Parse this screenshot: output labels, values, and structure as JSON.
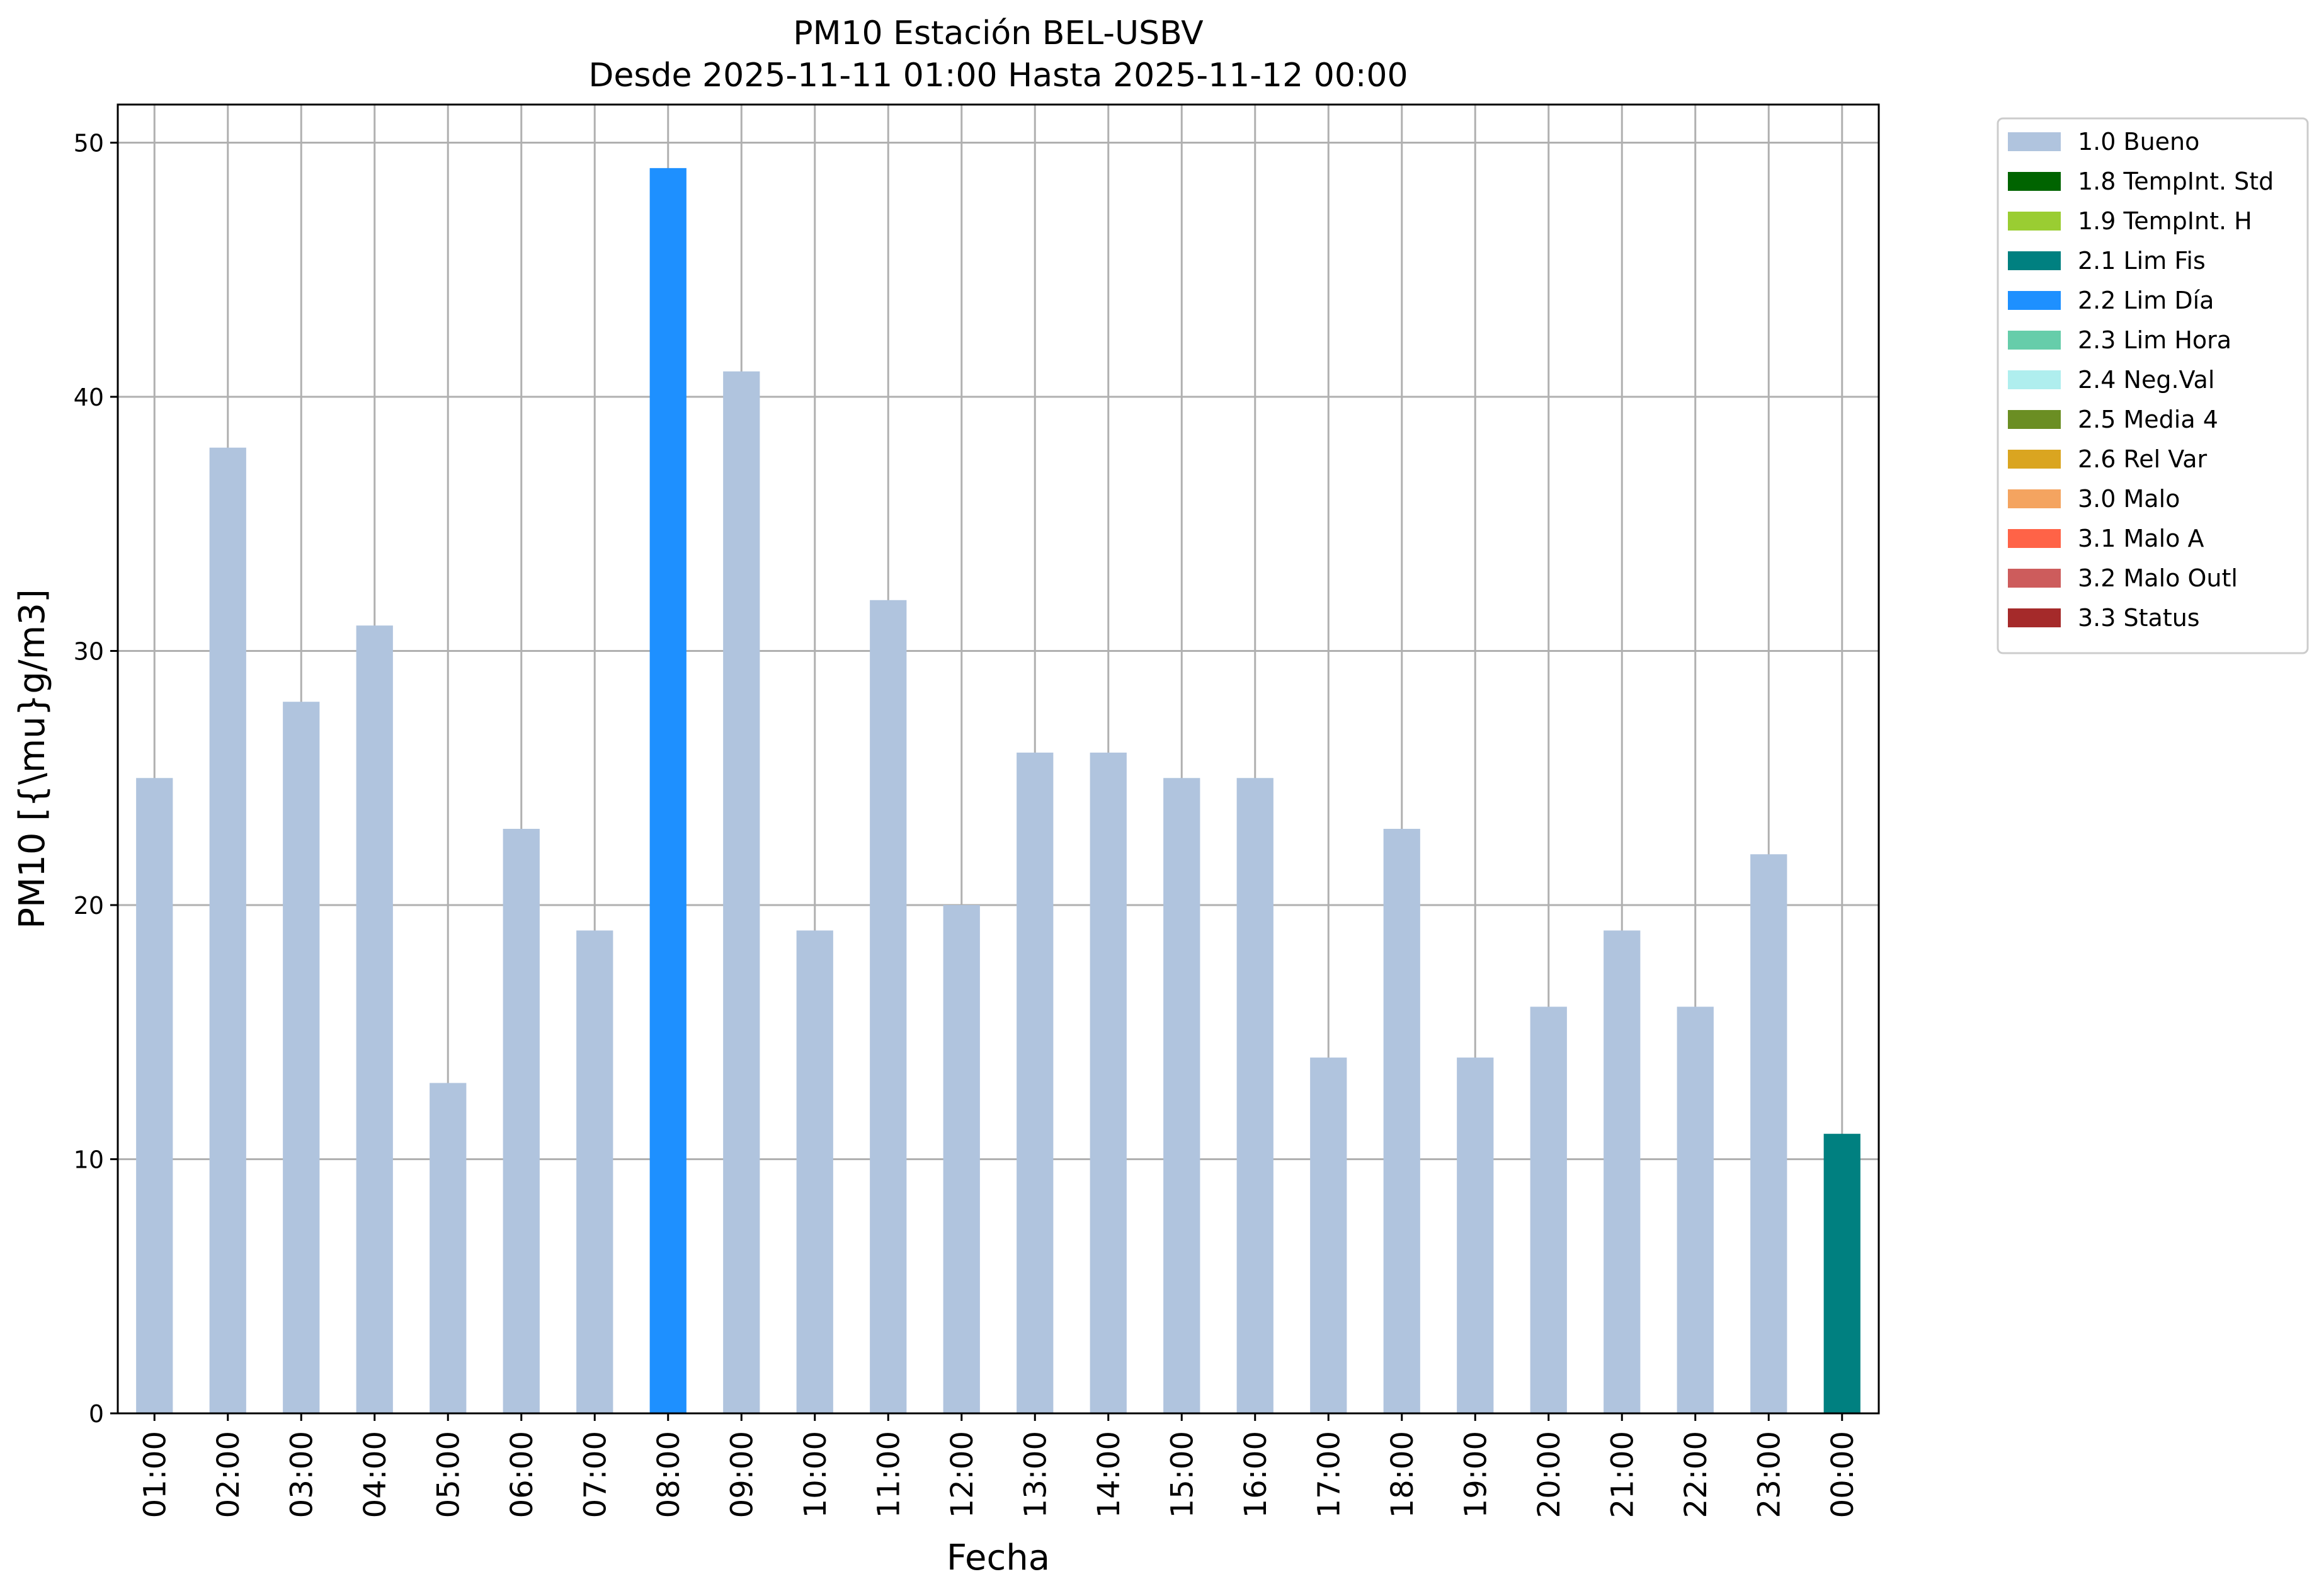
{
  "chart_data": {
    "type": "bar",
    "title": "PM10 Estación BEL-USBV",
    "subtitle": "Desde 2025-11-11 01:00 Hasta 2025-11-12 00:00",
    "xlabel": "Fecha",
    "ylabel": "PM10 [{\\mu}g/m3]",
    "ylim": [
      0,
      51.5
    ],
    "yticks": [
      0,
      10,
      20,
      30,
      40,
      50
    ],
    "grid": true,
    "legend_position": "outside-top-right",
    "categories": [
      "01:00",
      "02:00",
      "03:00",
      "04:00",
      "05:00",
      "06:00",
      "07:00",
      "08:00",
      "09:00",
      "10:00",
      "11:00",
      "12:00",
      "13:00",
      "14:00",
      "15:00",
      "16:00",
      "17:00",
      "18:00",
      "19:00",
      "20:00",
      "21:00",
      "22:00",
      "23:00",
      "00:00"
    ],
    "values": [
      25,
      38,
      28,
      31,
      13,
      23,
      19,
      49,
      41,
      19,
      32,
      20,
      26,
      26,
      25,
      25,
      14,
      23,
      14,
      16,
      19,
      16,
      22,
      11
    ],
    "flags": [
      "1.0 Bueno",
      "1.0 Bueno",
      "1.0 Bueno",
      "1.0 Bueno",
      "1.0 Bueno",
      "1.0 Bueno",
      "1.0 Bueno",
      "2.2 Lim Día",
      "1.0 Bueno",
      "1.0 Bueno",
      "1.0 Bueno",
      "1.0 Bueno",
      "1.0 Bueno",
      "1.0 Bueno",
      "1.0 Bueno",
      "1.0 Bueno",
      "1.0 Bueno",
      "1.0 Bueno",
      "1.0 Bueno",
      "1.0 Bueno",
      "1.0 Bueno",
      "1.0 Bueno",
      "1.0 Bueno",
      "2.1 Lim Fis"
    ],
    "legend": [
      {
        "label": "1.0 Bueno",
        "color": "#b0c4de"
      },
      {
        "label": "1.8 TempInt. Std",
        "color": "#006400"
      },
      {
        "label": "1.9 TempInt. H",
        "color": "#9acd32"
      },
      {
        "label": "2.1 Lim Fis",
        "color": "#008080"
      },
      {
        "label": "2.2 Lim Día",
        "color": "#1e90ff"
      },
      {
        "label": "2.3 Lim Hora",
        "color": "#66cdaa"
      },
      {
        "label": "2.4 Neg.Val",
        "color": "#afeeee"
      },
      {
        "label": "2.5 Media 4",
        "color": "#6b8e23"
      },
      {
        "label": "2.6 Rel Var",
        "color": "#daa520"
      },
      {
        "label": "3.0 Malo",
        "color": "#f4a460"
      },
      {
        "label": "3.1 Malo A",
        "color": "#ff6347"
      },
      {
        "label": "3.2 Malo Outl",
        "color": "#cd5c5c"
      },
      {
        "label": "3.3 Status",
        "color": "#a52a2a"
      }
    ]
  }
}
